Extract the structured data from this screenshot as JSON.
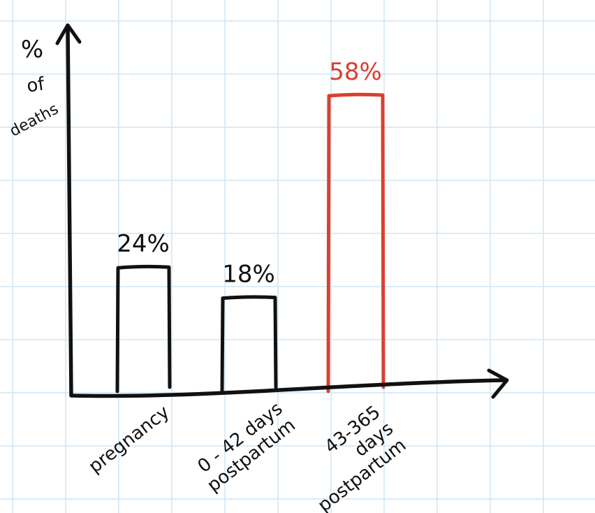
{
  "chart_data": {
    "type": "bar",
    "title": "",
    "xlabel": "",
    "ylabel_lines": [
      "%",
      "of",
      "deaths"
    ],
    "categories": [
      {
        "lines": [
          "pregnancy"
        ]
      },
      {
        "lines": [
          "0 - 42 days",
          "postpartum"
        ]
      },
      {
        "lines": [
          "43-365",
          "days",
          "postpartum"
        ]
      }
    ],
    "values": [
      24,
      18,
      58
    ],
    "value_labels": [
      "24%",
      "18%",
      "58%"
    ],
    "ylim": [
      0,
      65
    ],
    "grid": true,
    "colors": {
      "default_bar": "#111111",
      "highlight_bar": "#d9402f",
      "axis": "#111111",
      "grid": "#cfe6f5"
    },
    "highlight_index": 2
  }
}
